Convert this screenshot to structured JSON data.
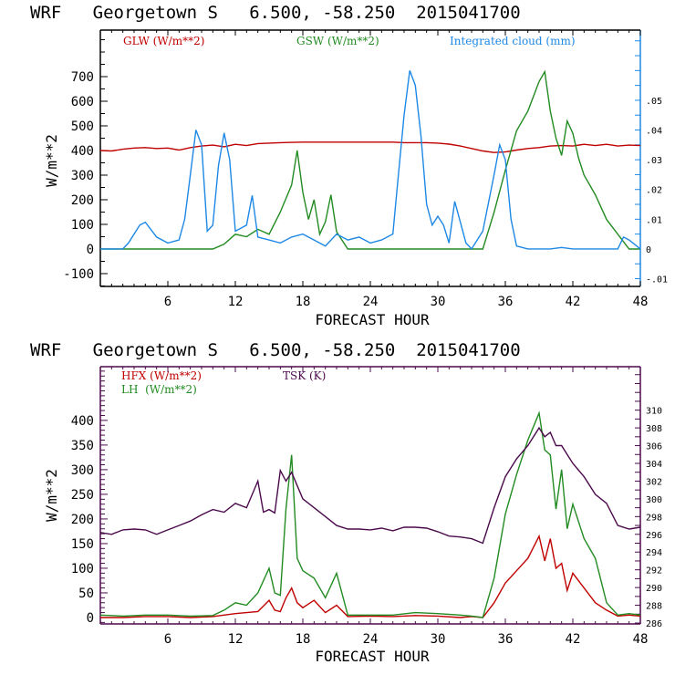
{
  "chart_data": [
    {
      "type": "line",
      "title": "WRF   Georgetown S   6.500, -58.250  2015041700",
      "xlabel": "FORECAST HOUR",
      "ylabel": "W/m**2",
      "xlim": [
        0,
        48
      ],
      "ylim": [
        -152,
        889
      ],
      "y2lim": [
        -0.0126,
        0.0736
      ],
      "x_ticks": [
        6,
        12,
        18,
        24,
        30,
        36,
        42,
        48
      ],
      "y_ticks": [
        -100,
        0,
        100,
        200,
        300,
        400,
        500,
        600,
        700
      ],
      "y_tick_labels": [
        "-100",
        "0",
        "100",
        "200",
        "300",
        "400",
        "500",
        "600",
        "700"
      ],
      "y2_ticks": [
        -0.01,
        0,
        0.01,
        0.02,
        0.03,
        0.04,
        0.05
      ],
      "y2_tick_labels": [
        "-.01",
        "0",
        ".01",
        ".02",
        ".03",
        ".04",
        ".05"
      ],
      "legend_position": "top",
      "series": [
        {
          "name": "GLW (W/m**2)",
          "axis": "left",
          "color": "#c00000",
          "x": [
            0,
            1,
            2,
            3,
            4,
            5,
            6,
            7,
            8,
            9,
            10,
            11,
            12,
            13,
            14,
            15,
            16,
            17,
            18,
            19,
            20,
            21,
            22,
            23,
            24,
            25,
            26,
            27,
            28,
            29,
            30,
            31,
            32,
            33,
            34,
            35,
            36,
            37,
            38,
            39,
            40,
            41,
            42,
            43,
            44,
            45,
            46,
            47,
            48
          ],
          "values": [
            400,
            398,
            405,
            410,
            412,
            408,
            410,
            402,
            412,
            418,
            422,
            415,
            425,
            420,
            428,
            430,
            432,
            433,
            434,
            434,
            434,
            434,
            434,
            434,
            434,
            434,
            434,
            432,
            432,
            432,
            430,
            426,
            418,
            408,
            398,
            392,
            394,
            402,
            408,
            412,
            418,
            420,
            418,
            425,
            420,
            425,
            418,
            422,
            420
          ]
        },
        {
          "name": "GSW (W/m**2)",
          "axis": "left",
          "color": "#228b22",
          "x": [
            0,
            1,
            2,
            3,
            4,
            5,
            6,
            7,
            8,
            9,
            10,
            11,
            12,
            13,
            14,
            15,
            16,
            17,
            17.5,
            18,
            18.5,
            19,
            19.5,
            20,
            20.5,
            21,
            22,
            23,
            24,
            25,
            26,
            27,
            28,
            29,
            30,
            31,
            32,
            33,
            34,
            35,
            36,
            37,
            38,
            39,
            39.5,
            40,
            40.5,
            41,
            41.5,
            42,
            42.5,
            43,
            44,
            45,
            46,
            47,
            48
          ],
          "values": [
            0,
            0,
            0,
            0,
            0,
            0,
            0,
            0,
            0,
            0,
            0,
            20,
            60,
            50,
            80,
            60,
            150,
            260,
            400,
            230,
            120,
            200,
            60,
            110,
            220,
            70,
            0,
            0,
            0,
            0,
            0,
            0,
            0,
            0,
            0,
            0,
            0,
            0,
            0,
            150,
            320,
            480,
            560,
            680,
            720,
            560,
            450,
            380,
            520,
            470,
            370,
            300,
            220,
            120,
            60,
            0,
            0
          ]
        },
        {
          "name": "Integrated cloud (mm)",
          "axis": "right",
          "color": "#1e88e5",
          "x": [
            0,
            1,
            2,
            2.5,
            3,
            3.5,
            4,
            5,
            6,
            7,
            7.5,
            8,
            8.5,
            9,
            9.5,
            10,
            10.5,
            11,
            11.5,
            12,
            12.5,
            13,
            13.5,
            14,
            15,
            16,
            17,
            18,
            19,
            20,
            21,
            22,
            23,
            24,
            25,
            26,
            26.5,
            27,
            27.5,
            28,
            28.5,
            29,
            29.5,
            30,
            30.5,
            31,
            31.5,
            32,
            32.5,
            33,
            34,
            35,
            35.5,
            36,
            36.5,
            37,
            38,
            39,
            40,
            41,
            42,
            43,
            44,
            45,
            46,
            46.5,
            47,
            48
          ],
          "values": [
            0,
            0,
            0,
            0.002,
            0.005,
            0.008,
            0.009,
            0.004,
            0.002,
            0.003,
            0.01,
            0.025,
            0.04,
            0.035,
            0.006,
            0.008,
            0.028,
            0.039,
            0.03,
            0.006,
            0.007,
            0.008,
            0.018,
            0.004,
            0.003,
            0.002,
            0.004,
            0.005,
            0.003,
            0.001,
            0.005,
            0.003,
            0.004,
            0.002,
            0.003,
            0.005,
            0.025,
            0.045,
            0.06,
            0.055,
            0.038,
            0.015,
            0.008,
            0.011,
            0.008,
            0.002,
            0.016,
            0.009,
            0.002,
            0,
            0.006,
            0.025,
            0.035,
            0.03,
            0.01,
            0.001,
            0,
            0,
            0,
            0.0005,
            0,
            0,
            0,
            0,
            0,
            0.004,
            0.003,
            0
          ]
        }
      ]
    },
    {
      "type": "line",
      "title": "WRF   Georgetown S   6.500, -58.250  2015041700",
      "xlabel": "FORECAST HOUR",
      "ylabel": "W/m**2",
      "xlim": [
        0,
        48
      ],
      "ylim": [
        -13,
        509
      ],
      "y2lim": [
        285.9,
        314.9
      ],
      "x_ticks": [
        6,
        12,
        18,
        24,
        30,
        36,
        42,
        48
      ],
      "y_ticks": [
        0,
        50,
        100,
        150,
        200,
        250,
        300,
        350,
        400
      ],
      "y_tick_labels": [
        "0",
        "50",
        "100",
        "150",
        "200",
        "250",
        "300",
        "350",
        "400"
      ],
      "y2_ticks": [
        286,
        288,
        290,
        292,
        294,
        296,
        298,
        300,
        302,
        304,
        306,
        308,
        310
      ],
      "y2_tick_labels": [
        "286",
        "288",
        "290",
        "292",
        "294",
        "296",
        "298",
        "300",
        "302",
        "304",
        "306",
        "308",
        "310"
      ],
      "legend_position": "top",
      "series": [
        {
          "name": "HFX (W/m**2)",
          "axis": "left",
          "color": "#c00000",
          "x": [
            0,
            2,
            4,
            6,
            8,
            10,
            11,
            12,
            13,
            14,
            15,
            15.5,
            16,
            16.5,
            17,
            17.5,
            18,
            19,
            20,
            21,
            22,
            24,
            26,
            28,
            30,
            32,
            33,
            34,
            35,
            36,
            37,
            38,
            39,
            39.5,
            40,
            40.5,
            41,
            41.5,
            42,
            43,
            44,
            45,
            46,
            47,
            48
          ],
          "values": [
            0,
            0,
            2,
            2,
            0,
            2,
            5,
            8,
            10,
            12,
            35,
            15,
            12,
            40,
            60,
            30,
            20,
            35,
            10,
            25,
            2,
            3,
            2,
            4,
            3,
            0,
            2,
            0,
            30,
            70,
            95,
            120,
            165,
            115,
            160,
            100,
            110,
            55,
            90,
            60,
            30,
            15,
            3,
            5,
            3
          ]
        },
        {
          "name": "LH (W/m**2)",
          "axis": "left",
          "color": "#228b22",
          "x": [
            0,
            2,
            4,
            6,
            8,
            10,
            11,
            12,
            13,
            14,
            15,
            15.5,
            16,
            16.5,
            17,
            17.5,
            18,
            19,
            20,
            21,
            22,
            24,
            26,
            28,
            30,
            32,
            33,
            34,
            35,
            36,
            37,
            38,
            39,
            39.5,
            40,
            40.5,
            41,
            41.5,
            42,
            43,
            44,
            45,
            46,
            47,
            48
          ],
          "values": [
            5,
            3,
            5,
            5,
            3,
            4,
            15,
            30,
            25,
            50,
            100,
            50,
            45,
            220,
            330,
            120,
            95,
            80,
            40,
            90,
            5,
            5,
            5,
            10,
            8,
            5,
            3,
            0,
            80,
            210,
            290,
            360,
            415,
            340,
            330,
            220,
            300,
            180,
            230,
            160,
            120,
            30,
            5,
            8,
            5
          ]
        },
        {
          "name": "TSK (K)",
          "axis": "right",
          "color": "#4b0a4b",
          "x": [
            0,
            1,
            2,
            3,
            4,
            5,
            6,
            7,
            8,
            9,
            10,
            11,
            12,
            13,
            14,
            14.5,
            15,
            15.5,
            16,
            16.5,
            17,
            17.5,
            18,
            19,
            20,
            21,
            22,
            23,
            24,
            25,
            26,
            27,
            28,
            29,
            30,
            31,
            32,
            33,
            34,
            35,
            36,
            37,
            38,
            39,
            39.5,
            40,
            40.5,
            41,
            41.5,
            42,
            43,
            44,
            45,
            46,
            47,
            48
          ],
          "values": [
            296.2,
            296,
            296.5,
            296.6,
            296.5,
            296,
            296.5,
            297,
            297.5,
            298.2,
            298.8,
            298.5,
            299.5,
            299,
            302,
            298.5,
            298.8,
            298.4,
            303.2,
            302,
            303,
            301.5,
            300,
            299,
            298,
            297,
            296.6,
            296.6,
            296.5,
            296.7,
            296.4,
            296.8,
            296.8,
            296.7,
            296.3,
            295.8,
            295.7,
            295.5,
            295,
            299,
            302.5,
            304.5,
            306,
            308,
            307,
            307.5,
            306,
            306,
            305,
            304,
            302.5,
            300.5,
            299.5,
            297,
            296.6,
            296.8
          ]
        }
      ]
    }
  ],
  "charts_text": {
    "top": {
      "title": "WRF   Georgetown S   6.500, -58.250  2015041700",
      "legend": [
        "GLW (W/m**2)",
        "GSW (W/m**2)",
        "Integrated cloud (mm)"
      ],
      "xlabel": "FORECAST HOUR",
      "ylabel": "W/m**2"
    },
    "bottom": {
      "title": "WRF   Georgetown S   6.500, -58.250  2015041700",
      "legend": [
        "HFX (W/m**2)",
        "LH  (W/m**2)",
        "TSK (K)"
      ],
      "xlabel": "FORECAST HOUR",
      "ylabel": "W/m**2"
    }
  }
}
